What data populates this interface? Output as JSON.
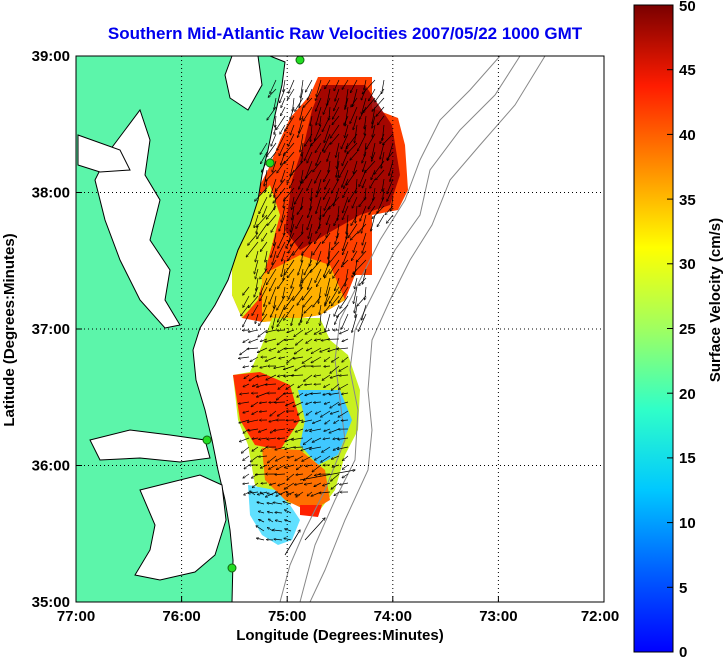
{
  "title": "Southern Mid-Atlantic Raw Velocities 2007/05/22 1000 GMT",
  "x_axis": {
    "label": "Longitude (Degrees:Minutes)",
    "ticks": [
      "77:00",
      "76:00",
      "75:00",
      "74:00",
      "73:00",
      "72:00"
    ]
  },
  "y_axis": {
    "label": "Latitude (Degrees:Minutes)",
    "ticks": [
      "39:00",
      "38:00",
      "37:00",
      "36:00",
      "35:00"
    ]
  },
  "colorbar": {
    "label": "Surface Velocity (cm/s)",
    "ticks": [
      "50",
      "45",
      "40",
      "35",
      "30",
      "25",
      "20",
      "15",
      "10",
      "5",
      "0"
    ],
    "range": [
      0,
      50
    ],
    "colormap": "jet"
  },
  "map": {
    "extent": {
      "lon_west": -77,
      "lon_east": -72,
      "lat_south": 35,
      "lat_north": 39
    },
    "grid": "dotted",
    "land_color": "#5cf5aa",
    "coastline_color": "#000000",
    "bathymetry_color": "#888888",
    "station_color": "#22dd22",
    "arrow_color": "#000000"
  }
}
